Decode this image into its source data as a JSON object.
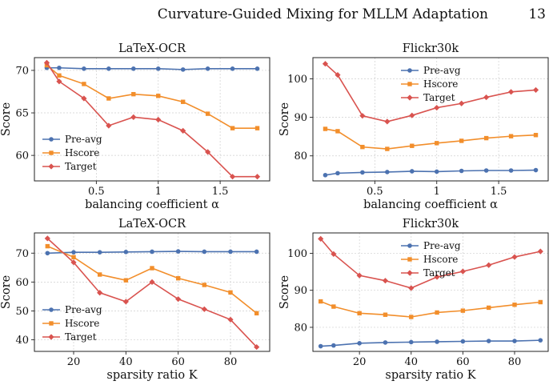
{
  "header": {
    "title": "Curvature-Guided Mixing for MLLM Adaptation",
    "page_number": "13"
  },
  "colors": {
    "pre_avg": "#4c72b0",
    "hscore": "#f28e2b",
    "target": "#d9534f"
  },
  "chart_data": [
    {
      "type": "line",
      "title": "LaTeX-OCR",
      "xlabel": "balancing coefficient α",
      "ylabel": "Score",
      "xlim": [
        0.0,
        1.9
      ],
      "ylim": [
        57.0,
        71.5
      ],
      "xticks": [
        0.5,
        1.0,
        1.5
      ],
      "yticks": [
        60,
        65,
        70
      ],
      "legend": "bottom-left",
      "grid": true,
      "x": [
        0.1,
        0.2,
        0.4,
        0.6,
        0.8,
        1.0,
        1.2,
        1.4,
        1.6,
        1.8
      ],
      "series": [
        {
          "name": "Pre-avg",
          "values": [
            70.3,
            70.3,
            70.2,
            70.2,
            70.2,
            70.2,
            70.1,
            70.2,
            70.2,
            70.2
          ]
        },
        {
          "name": "Hscore",
          "values": [
            70.6,
            69.4,
            68.4,
            66.7,
            67.2,
            67.0,
            66.3,
            64.9,
            63.2,
            63.2
          ]
        },
        {
          "name": "Target",
          "values": [
            70.9,
            68.7,
            66.7,
            63.5,
            64.5,
            64.2,
            62.9,
            60.4,
            57.5,
            57.5
          ]
        }
      ]
    },
    {
      "type": "line",
      "title": "Flickr30k",
      "xlabel": "balancing coefficient α",
      "ylabel": "Score",
      "xlim": [
        0.0,
        1.9
      ],
      "ylim": [
        73.5,
        105.5
      ],
      "xticks": [
        0.5,
        1.0,
        1.5
      ],
      "yticks": [
        80,
        90,
        100
      ],
      "legend": "top-center",
      "grid": true,
      "x": [
        0.1,
        0.2,
        0.4,
        0.6,
        0.8,
        1.0,
        1.2,
        1.4,
        1.6,
        1.8
      ],
      "series": [
        {
          "name": "Pre-avg",
          "values": [
            75.0,
            75.5,
            75.7,
            75.8,
            76.0,
            75.9,
            76.1,
            76.2,
            76.2,
            76.3
          ]
        },
        {
          "name": "Hscore",
          "values": [
            87.0,
            86.4,
            82.3,
            81.8,
            82.6,
            83.3,
            83.9,
            84.6,
            85.1,
            85.4
          ]
        },
        {
          "name": "Target",
          "values": [
            103.9,
            101.0,
            90.4,
            88.9,
            90.5,
            92.5,
            93.6,
            95.2,
            96.6,
            97.1
          ]
        }
      ]
    },
    {
      "type": "line",
      "title": "LaTeX-OCR",
      "xlabel": "sparsity ratio K",
      "ylabel": "Score",
      "xlim": [
        5,
        95
      ],
      "ylim": [
        36.0,
        77.0
      ],
      "xticks": [
        20,
        40,
        60,
        80
      ],
      "yticks": [
        40,
        50,
        60,
        70
      ],
      "legend": "bottom-left",
      "grid": true,
      "x": [
        10,
        20,
        30,
        40,
        50,
        60,
        70,
        80,
        90
      ],
      "series": [
        {
          "name": "Pre-avg",
          "values": [
            70.0,
            70.3,
            70.3,
            70.4,
            70.5,
            70.6,
            70.5,
            70.5,
            70.5
          ]
        },
        {
          "name": "Hscore",
          "values": [
            72.4,
            68.6,
            62.6,
            60.6,
            64.8,
            61.3,
            59.0,
            56.4,
            49.2
          ]
        },
        {
          "name": "Target",
          "values": [
            75.1,
            66.8,
            56.3,
            53.2,
            60.0,
            54.1,
            50.6,
            47.0,
            37.5
          ]
        }
      ]
    },
    {
      "type": "line",
      "title": "Flickr30k",
      "xlabel": "sparsity ratio K",
      "ylabel": "Score",
      "xlim": [
        2,
        93
      ],
      "ylim": [
        73.5,
        105.5
      ],
      "xticks": [
        20,
        40,
        60,
        80
      ],
      "yticks": [
        80,
        90,
        100
      ],
      "legend": "top-center",
      "grid": true,
      "x": [
        5,
        10,
        20,
        30,
        40,
        50,
        60,
        70,
        80,
        90
      ],
      "series": [
        {
          "name": "Pre-avg",
          "values": [
            74.9,
            75.1,
            75.7,
            75.9,
            76.0,
            76.1,
            76.2,
            76.3,
            76.3,
            76.5
          ]
        },
        {
          "name": "Hscore",
          "values": [
            87.0,
            85.6,
            83.8,
            83.4,
            82.8,
            84.0,
            84.5,
            85.3,
            86.1,
            86.8
          ]
        },
        {
          "name": "Target",
          "values": [
            103.9,
            99.8,
            94.0,
            92.6,
            90.6,
            93.6,
            95.1,
            96.8,
            99.0,
            100.5
          ]
        }
      ]
    }
  ]
}
